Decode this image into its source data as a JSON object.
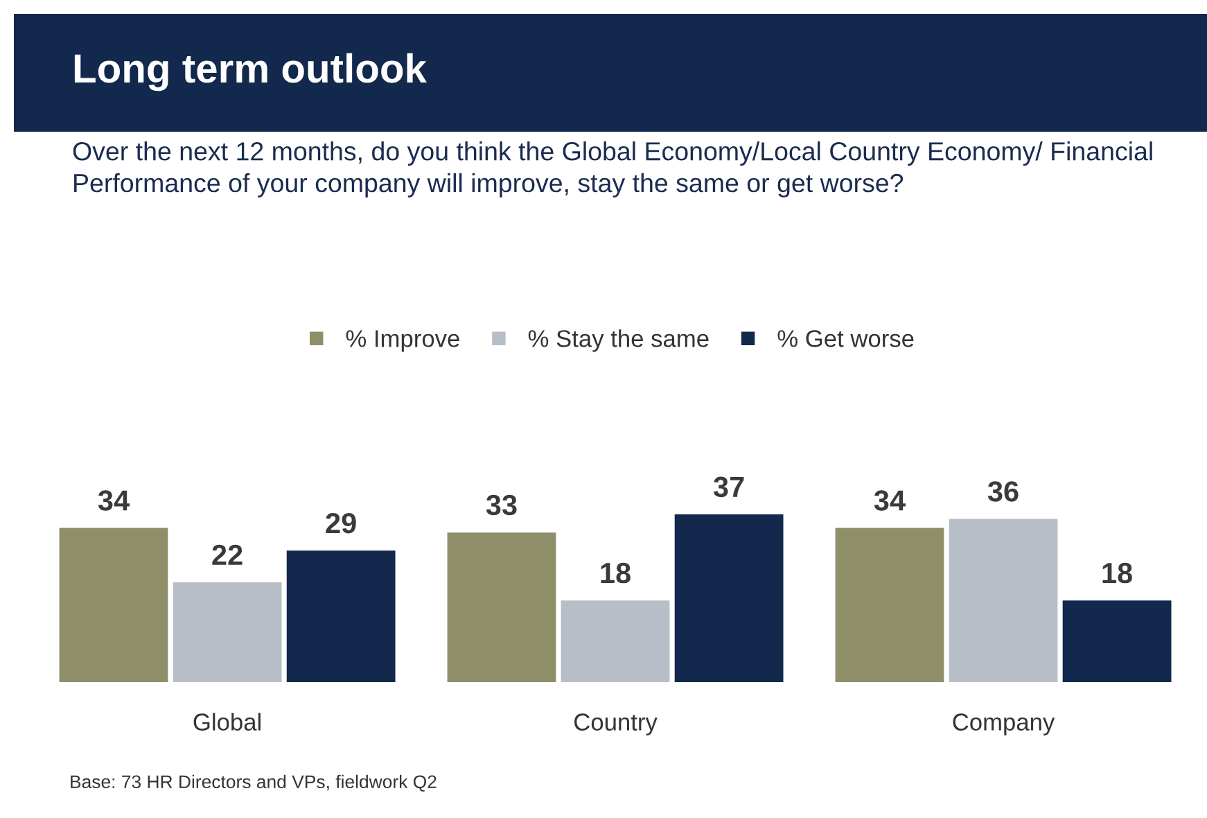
{
  "chart_data": {
    "type": "bar",
    "title": "Long term outlook",
    "subtitle": "Over the next 12 months, do you think the Global Economy/Local Country Economy/ Financial Performance of your company will improve, stay the same or get worse?",
    "categories": [
      "Global",
      "Country",
      "Company"
    ],
    "series": [
      {
        "name": "% Improve",
        "color": "#8e8f68",
        "values": [
          34,
          33,
          34
        ]
      },
      {
        "name": "% Stay the same",
        "color": "#b7bec8",
        "values": [
          22,
          18,
          36
        ]
      },
      {
        "name": "% Get worse",
        "color": "#12284c",
        "values": [
          29,
          37,
          18
        ]
      }
    ],
    "data_labels": true,
    "legend": "top",
    "grid": false,
    "annotations": [
      "Base: 73 HR Directors and VPs, fieldwork Q2"
    ]
  }
}
